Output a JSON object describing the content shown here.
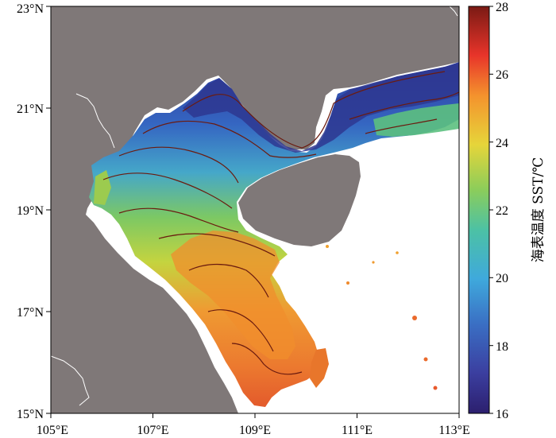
{
  "map": {
    "lon_ticks": [
      "105°E",
      "107°E",
      "109°E",
      "111°E",
      "113°E"
    ],
    "lat_ticks": [
      "15°N",
      "17°N",
      "19°N",
      "21°N",
      "23°N"
    ],
    "lon_range": [
      105,
      113
    ],
    "lat_range": [
      15,
      23
    ],
    "land_color": "#7f7878",
    "no_data_color": "#ffffff",
    "contour_color": "#6b1b0f"
  },
  "colorbar": {
    "label": "海表温度 SST/℃",
    "ticks": [
      "16",
      "18",
      "20",
      "22",
      "24",
      "26",
      "28"
    ],
    "range": [
      16,
      28
    ],
    "colormap": "jet"
  }
}
